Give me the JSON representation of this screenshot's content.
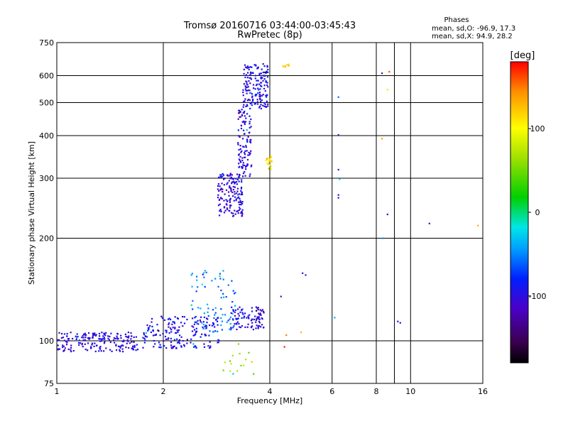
{
  "chart_data": {
    "type": "scatter",
    "title": "Tromsø 20160716 03:44:00-03:45:43",
    "subtitle": "RwPretec (8p)",
    "xlabel": "Frequency [MHz]",
    "ylabel": "Stationary phase Virtual Height [km]",
    "xscale": "log",
    "yscale": "log",
    "xlim": [
      1,
      16
    ],
    "ylim": [
      75,
      750
    ],
    "xticks": [
      1,
      2,
      4,
      6,
      8,
      10,
      16
    ],
    "yticks": [
      75,
      100,
      200,
      300,
      400,
      500,
      600,
      750
    ],
    "xgrid": [
      2,
      4,
      6,
      8,
      9,
      10
    ],
    "ygrid": [
      100,
      200,
      300,
      400,
      500,
      600
    ],
    "stats": {
      "heading": "Phases",
      "line1": "mean, sd,O: -96.9, 17.3",
      "line2": "mean, sd,X:  94.9, 28.2"
    },
    "colorbar": {
      "label": "[deg]",
      "range": [
        -180,
        180
      ],
      "ticks": [
        100,
        0,
        -100
      ]
    },
    "clusters": [
      {
        "xr": [
          1.0,
          1.8
        ],
        "yr": [
          93,
          106
        ],
        "n": 200,
        "phase": -100
      },
      {
        "xr": [
          1.8,
          2.9
        ],
        "yr": [
          95,
          118
        ],
        "n": 170,
        "phase": -95
      },
      {
        "xr": [
          2.4,
          3.2
        ],
        "yr": [
          106,
          162
        ],
        "n": 80,
        "phase": -55
      },
      {
        "xr": [
          3.1,
          3.85
        ],
        "yr": [
          108,
          126
        ],
        "n": 95,
        "phase": -100
      },
      {
        "xr": [
          2.85,
          3.35
        ],
        "yr": [
          232,
          310
        ],
        "n": 160,
        "phase": -105
      },
      {
        "xr": [
          3.25,
          3.55
        ],
        "yr": [
          300,
          480
        ],
        "n": 110,
        "phase": -100
      },
      {
        "xr": [
          3.35,
          3.95
        ],
        "yr": [
          480,
          650
        ],
        "n": 170,
        "phase": -95
      },
      {
        "xr": [
          3.9,
          4.05
        ],
        "yr": [
          318,
          350
        ],
        "n": 22,
        "phase": 110
      },
      {
        "xr": [
          4.35,
          4.6
        ],
        "yr": [
          636,
          648
        ],
        "n": 8,
        "phase": 125
      },
      {
        "xr": [
          2.95,
          3.6
        ],
        "yr": [
          78,
          98
        ],
        "n": 14,
        "phase": 60
      }
    ],
    "points": [
      {
        "x": 6.25,
        "y": 519,
        "phase": -60
      },
      {
        "x": 6.25,
        "y": 402,
        "phase": -105
      },
      {
        "x": 6.25,
        "y": 318,
        "phase": -110
      },
      {
        "x": 6.3,
        "y": 298,
        "phase": -20
      },
      {
        "x": 6.25,
        "y": 268,
        "phase": -110
      },
      {
        "x": 6.25,
        "y": 263,
        "phase": -110
      },
      {
        "x": 6.1,
        "y": 117,
        "phase": -40
      },
      {
        "x": 8.3,
        "y": 610,
        "phase": -100
      },
      {
        "x": 8.7,
        "y": 616,
        "phase": 160
      },
      {
        "x": 8.6,
        "y": 546,
        "phase": 110
      },
      {
        "x": 8.3,
        "y": 392,
        "phase": 140
      },
      {
        "x": 8.6,
        "y": 235,
        "phase": -100
      },
      {
        "x": 8.35,
        "y": 200,
        "phase": -50
      },
      {
        "x": 9.2,
        "y": 114,
        "phase": -100
      },
      {
        "x": 9.35,
        "y": 113,
        "phase": -100
      },
      {
        "x": 11.3,
        "y": 221,
        "phase": -110
      },
      {
        "x": 15.5,
        "y": 218,
        "phase": 130
      },
      {
        "x": 4.95,
        "y": 158,
        "phase": -105
      },
      {
        "x": 5.05,
        "y": 156,
        "phase": -105
      },
      {
        "x": 4.4,
        "y": 96,
        "phase": 175
      },
      {
        "x": 4.45,
        "y": 104,
        "phase": 150
      },
      {
        "x": 4.9,
        "y": 106,
        "phase": 130
      },
      {
        "x": 4.3,
        "y": 135,
        "phase": -100
      },
      {
        "x": 3.6,
        "y": 80,
        "phase": 40
      },
      {
        "x": 3.15,
        "y": 80,
        "phase": -30
      }
    ]
  }
}
